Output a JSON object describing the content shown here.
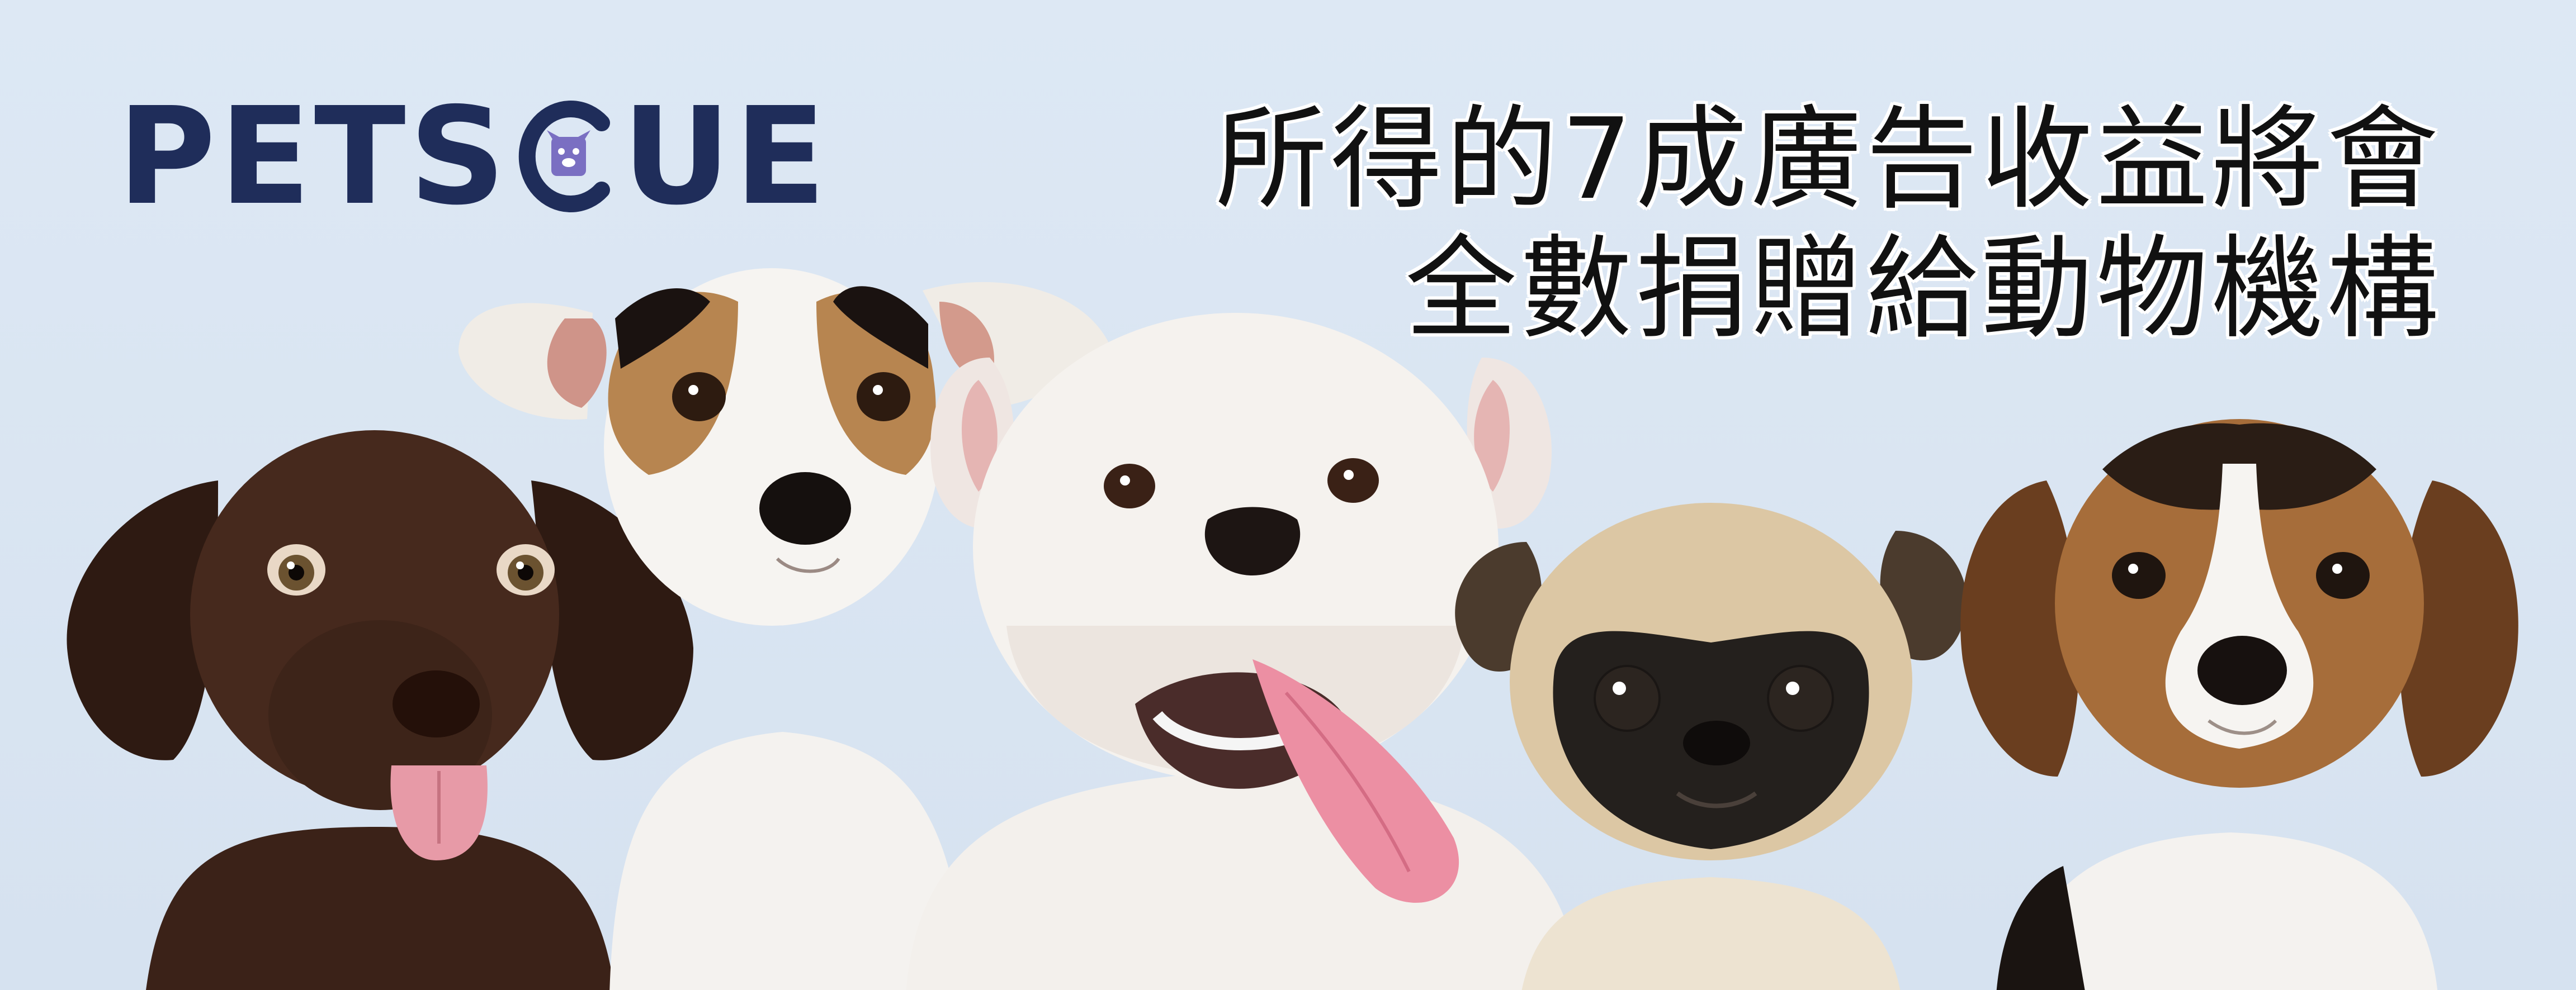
{
  "brand": {
    "logo_text_before": "PETS",
    "logo_text_after": "UE",
    "logo_mark": "paw-in-c-icon",
    "color": "#1f2d5a"
  },
  "headline": {
    "line1": "所得的7成廣告收益將會",
    "line2": "全數捐贈給動物機構"
  },
  "dogs": [
    {
      "name": "chocolate-labrador-puppy",
      "icon": "dog-icon"
    },
    {
      "name": "jack-russell-terrier-puppy",
      "icon": "dog-icon"
    },
    {
      "name": "english-bulldog-puppy",
      "icon": "dog-icon"
    },
    {
      "name": "pug-puppy",
      "icon": "dog-icon"
    },
    {
      "name": "beagle-puppy",
      "icon": "dog-icon"
    }
  ],
  "colors": {
    "background": "#dce7f3",
    "brand_navy": "#1f2d5a",
    "headline_text": "#111111",
    "headline_outline": "#ffffff"
  }
}
